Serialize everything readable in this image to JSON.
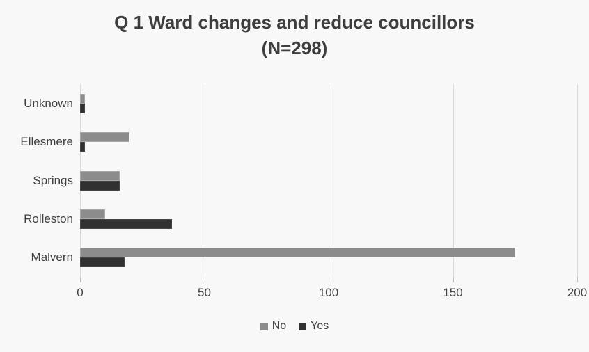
{
  "chart_data": {
    "type": "bar",
    "orientation": "horizontal",
    "title": "Q 1 Ward changes and reduce councillors",
    "subtitle": "(N=298)",
    "categories": [
      "Unknown",
      "Ellesmere",
      "Springs",
      "Rolleston",
      "Malvern"
    ],
    "categories_order": "top-to-bottom",
    "series": [
      {
        "name": "No",
        "color": "#8c8c8c",
        "values": [
          2,
          20,
          16,
          10,
          175
        ]
      },
      {
        "name": "Yes",
        "color": "#313131",
        "values": [
          2,
          2,
          16,
          37,
          18
        ]
      }
    ],
    "x_axis": {
      "min": 0,
      "max": 200,
      "ticks": [
        0,
        50,
        100,
        150,
        200
      ]
    },
    "grid": true,
    "legend": {
      "position": "bottom",
      "entries": [
        "No",
        "Yes"
      ]
    }
  },
  "colors": {
    "background": "#f8f8f8",
    "title_text": "#3e3e3e",
    "axis_text": "#404040",
    "gridline": "#d9d9d9",
    "series_no": "#8c8c8c",
    "series_yes": "#313131"
  }
}
